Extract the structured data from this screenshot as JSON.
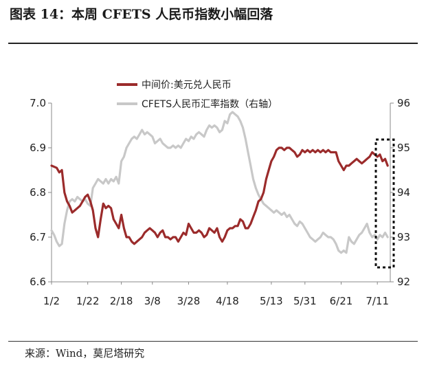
{
  "title": "图表 14：本周 CFETS 人民币指数小幅回落",
  "source": "来源：Wind，莫尼塔研究",
  "chart_data": {
    "type": "line",
    "title": "图表 14：本周 CFETS 人民币指数小幅回落",
    "x_tick_labels": [
      "1/2",
      "1/22",
      "2/18",
      "3/8",
      "3/28",
      "4/18",
      "5/13",
      "5/31",
      "6/21",
      "7/11"
    ],
    "x_tick_positions": [
      0,
      14,
      27,
      39,
      53,
      68,
      85,
      98,
      112,
      126
    ],
    "y_left": {
      "ticks": [
        6.6,
        6.7,
        6.8,
        6.9,
        7.0
      ],
      "ylim": [
        6.6,
        7.0
      ]
    },
    "y_right": {
      "ticks": [
        92,
        93,
        94,
        95,
        96
      ],
      "ylim": [
        92,
        96
      ]
    },
    "grid": false,
    "legend_position": "top-center",
    "annotation": "dotted-box around the last week of data (right edge)",
    "series": [
      {
        "name": "中间价:美元兑人民币",
        "axis": "left",
        "color": "#9b2b2b",
        "points": [
          [
            0,
            6.86
          ],
          [
            2,
            6.855
          ],
          [
            3,
            6.845
          ],
          [
            4,
            6.85
          ],
          [
            5,
            6.8
          ],
          [
            6,
            6.78
          ],
          [
            7,
            6.77
          ],
          [
            8,
            6.755
          ],
          [
            9,
            6.76
          ],
          [
            10,
            6.765
          ],
          [
            11,
            6.77
          ],
          [
            12,
            6.78
          ],
          [
            13,
            6.79
          ],
          [
            14,
            6.795
          ],
          [
            15,
            6.78
          ],
          [
            16,
            6.76
          ],
          [
            17,
            6.72
          ],
          [
            18,
            6.7
          ],
          [
            19,
            6.74
          ],
          [
            20,
            6.775
          ],
          [
            21,
            6.765
          ],
          [
            22,
            6.77
          ],
          [
            23,
            6.765
          ],
          [
            24,
            6.74
          ],
          [
            25,
            6.73
          ],
          [
            26,
            6.72
          ],
          [
            27,
            6.75
          ],
          [
            28,
            6.72
          ],
          [
            29,
            6.7
          ],
          [
            30,
            6.7
          ],
          [
            31,
            6.69
          ],
          [
            32,
            6.685
          ],
          [
            33,
            6.69
          ],
          [
            34,
            6.695
          ],
          [
            35,
            6.7
          ],
          [
            36,
            6.71
          ],
          [
            37,
            6.715
          ],
          [
            38,
            6.72
          ],
          [
            39,
            6.715
          ],
          [
            40,
            6.71
          ],
          [
            41,
            6.7
          ],
          [
            42,
            6.71
          ],
          [
            43,
            6.715
          ],
          [
            44,
            6.7
          ],
          [
            45,
            6.7
          ],
          [
            46,
            6.695
          ],
          [
            47,
            6.7
          ],
          [
            48,
            6.7
          ],
          [
            49,
            6.69
          ],
          [
            50,
            6.7
          ],
          [
            51,
            6.71
          ],
          [
            52,
            6.705
          ],
          [
            53,
            6.73
          ],
          [
            54,
            6.72
          ],
          [
            55,
            6.71
          ],
          [
            56,
            6.71
          ],
          [
            57,
            6.715
          ],
          [
            58,
            6.71
          ],
          [
            59,
            6.7
          ],
          [
            60,
            6.705
          ],
          [
            61,
            6.72
          ],
          [
            62,
            6.715
          ],
          [
            63,
            6.71
          ],
          [
            64,
            6.72
          ],
          [
            65,
            6.7
          ],
          [
            66,
            6.69
          ],
          [
            67,
            6.7
          ],
          [
            68,
            6.715
          ],
          [
            69,
            6.72
          ],
          [
            70,
            6.72
          ],
          [
            71,
            6.725
          ],
          [
            72,
            6.725
          ],
          [
            73,
            6.74
          ],
          [
            74,
            6.735
          ],
          [
            75,
            6.72
          ],
          [
            76,
            6.72
          ],
          [
            77,
            6.73
          ],
          [
            78,
            6.745
          ],
          [
            79,
            6.76
          ],
          [
            80,
            6.78
          ],
          [
            81,
            6.785
          ],
          [
            82,
            6.8
          ],
          [
            83,
            6.83
          ],
          [
            84,
            6.85
          ],
          [
            85,
            6.87
          ],
          [
            86,
            6.88
          ],
          [
            87,
            6.895
          ],
          [
            88,
            6.9
          ],
          [
            89,
            6.9
          ],
          [
            90,
            6.895
          ],
          [
            91,
            6.9
          ],
          [
            92,
            6.9
          ],
          [
            93,
            6.895
          ],
          [
            94,
            6.89
          ],
          [
            95,
            6.88
          ],
          [
            96,
            6.885
          ],
          [
            97,
            6.895
          ],
          [
            98,
            6.89
          ],
          [
            99,
            6.895
          ],
          [
            100,
            6.89
          ],
          [
            101,
            6.895
          ],
          [
            102,
            6.89
          ],
          [
            103,
            6.895
          ],
          [
            104,
            6.89
          ],
          [
            105,
            6.895
          ],
          [
            106,
            6.89
          ],
          [
            107,
            6.895
          ],
          [
            108,
            6.89
          ],
          [
            109,
            6.89
          ],
          [
            110,
            6.89
          ],
          [
            111,
            6.87
          ],
          [
            112,
            6.86
          ],
          [
            113,
            6.85
          ],
          [
            114,
            6.86
          ],
          [
            115,
            6.86
          ],
          [
            116,
            6.865
          ],
          [
            117,
            6.87
          ],
          [
            118,
            6.875
          ],
          [
            119,
            6.87
          ],
          [
            120,
            6.865
          ],
          [
            121,
            6.87
          ],
          [
            122,
            6.875
          ],
          [
            123,
            6.88
          ],
          [
            124,
            6.89
          ],
          [
            125,
            6.885
          ],
          [
            126,
            6.88
          ],
          [
            127,
            6.885
          ],
          [
            128,
            6.87
          ],
          [
            129,
            6.875
          ],
          [
            130,
            6.86
          ]
        ]
      },
      {
        "name": "CFETS人民币汇率指数（右轴）",
        "axis": "right",
        "color": "#c8c8c8",
        "points": [
          [
            0,
            93.15
          ],
          [
            1,
            93.05
          ],
          [
            2,
            92.9
          ],
          [
            3,
            92.8
          ],
          [
            4,
            92.85
          ],
          [
            5,
            93.3
          ],
          [
            6,
            93.6
          ],
          [
            7,
            93.8
          ],
          [
            8,
            93.85
          ],
          [
            9,
            93.8
          ],
          [
            10,
            93.9
          ],
          [
            11,
            93.85
          ],
          [
            12,
            93.8
          ],
          [
            13,
            93.85
          ],
          [
            14,
            93.75
          ],
          [
            15,
            93.7
          ],
          [
            16,
            94.1
          ],
          [
            17,
            94.2
          ],
          [
            18,
            94.3
          ],
          [
            19,
            94.25
          ],
          [
            20,
            94.2
          ],
          [
            21,
            94.3
          ],
          [
            22,
            94.2
          ],
          [
            23,
            94.3
          ],
          [
            24,
            94.25
          ],
          [
            25,
            94.35
          ],
          [
            26,
            94.2
          ],
          [
            27,
            94.7
          ],
          [
            28,
            94.8
          ],
          [
            29,
            95.0
          ],
          [
            30,
            95.1
          ],
          [
            31,
            95.2
          ],
          [
            32,
            95.25
          ],
          [
            33,
            95.2
          ],
          [
            34,
            95.3
          ],
          [
            35,
            95.4
          ],
          [
            36,
            95.3
          ],
          [
            37,
            95.35
          ],
          [
            38,
            95.3
          ],
          [
            39,
            95.25
          ],
          [
            40,
            95.1
          ],
          [
            41,
            95.15
          ],
          [
            42,
            95.2
          ],
          [
            43,
            95.1
          ],
          [
            44,
            95.05
          ],
          [
            45,
            95.0
          ],
          [
            46,
            95.0
          ],
          [
            47,
            95.05
          ],
          [
            48,
            95.0
          ],
          [
            49,
            95.05
          ],
          [
            50,
            95.0
          ],
          [
            51,
            95.1
          ],
          [
            52,
            95.2
          ],
          [
            53,
            95.15
          ],
          [
            54,
            95.25
          ],
          [
            55,
            95.2
          ],
          [
            56,
            95.3
          ],
          [
            57,
            95.35
          ],
          [
            58,
            95.3
          ],
          [
            59,
            95.25
          ],
          [
            60,
            95.4
          ],
          [
            61,
            95.5
          ],
          [
            62,
            95.45
          ],
          [
            63,
            95.5
          ],
          [
            64,
            95.45
          ],
          [
            65,
            95.35
          ],
          [
            66,
            95.4
          ],
          [
            67,
            95.6
          ],
          [
            68,
            95.55
          ],
          [
            69,
            95.75
          ],
          [
            70,
            95.8
          ],
          [
            71,
            95.75
          ],
          [
            72,
            95.7
          ],
          [
            73,
            95.6
          ],
          [
            74,
            95.45
          ],
          [
            75,
            95.2
          ],
          [
            76,
            94.9
          ],
          [
            77,
            94.6
          ],
          [
            78,
            94.3
          ],
          [
            79,
            94.1
          ],
          [
            80,
            93.95
          ],
          [
            81,
            93.85
          ],
          [
            82,
            93.75
          ],
          [
            83,
            93.7
          ],
          [
            84,
            93.65
          ],
          [
            85,
            93.6
          ],
          [
            86,
            93.55
          ],
          [
            87,
            93.6
          ],
          [
            88,
            93.55
          ],
          [
            89,
            93.5
          ],
          [
            90,
            93.55
          ],
          [
            91,
            93.45
          ],
          [
            92,
            93.5
          ],
          [
            93,
            93.4
          ],
          [
            94,
            93.3
          ],
          [
            95,
            93.25
          ],
          [
            96,
            93.35
          ],
          [
            97,
            93.3
          ],
          [
            98,
            93.2
          ],
          [
            99,
            93.1
          ],
          [
            100,
            93.0
          ],
          [
            101,
            92.95
          ],
          [
            102,
            92.9
          ],
          [
            103,
            92.95
          ],
          [
            104,
            93.0
          ],
          [
            105,
            93.1
          ],
          [
            106,
            93.05
          ],
          [
            107,
            93.0
          ],
          [
            108,
            93.0
          ],
          [
            109,
            92.95
          ],
          [
            110,
            92.85
          ],
          [
            111,
            92.7
          ],
          [
            112,
            92.65
          ],
          [
            113,
            92.7
          ],
          [
            114,
            92.65
          ],
          [
            115,
            93.0
          ],
          [
            116,
            92.9
          ],
          [
            117,
            92.85
          ],
          [
            118,
            92.95
          ],
          [
            119,
            93.05
          ],
          [
            120,
            93.1
          ],
          [
            121,
            93.2
          ],
          [
            122,
            93.3
          ],
          [
            123,
            93.1
          ],
          [
            124,
            93.0
          ],
          [
            125,
            93.05
          ],
          [
            126,
            92.95
          ],
          [
            127,
            93.05
          ],
          [
            128,
            93.0
          ],
          [
            129,
            93.1
          ],
          [
            130,
            93.0
          ]
        ]
      }
    ]
  }
}
